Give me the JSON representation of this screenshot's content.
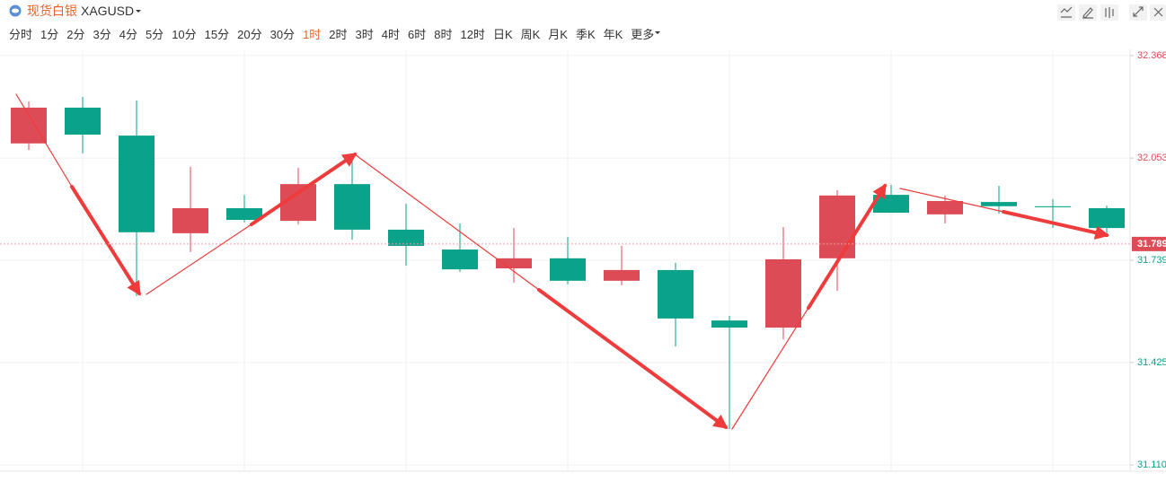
{
  "header": {
    "title": "现货白银",
    "symbol": "XAGUSD",
    "periods": [
      "分时",
      "1分",
      "2分",
      "3分",
      "4分",
      "5分",
      "10分",
      "15分",
      "20分",
      "30分",
      "1时",
      "2时",
      "3时",
      "4时",
      "6时",
      "8时",
      "12时",
      "日K",
      "周K",
      "月K",
      "季K",
      "年K",
      "更多"
    ],
    "active_period": 10
  },
  "chart_data": {
    "type": "candlestick",
    "up_color": "#dd4b57",
    "down_color": "#0aa38a",
    "open": [
      32.098,
      32.208,
      32.122,
      31.822,
      31.899,
      31.86,
      31.973,
      31.833,
      31.772,
      31.714,
      31.745,
      31.676,
      31.709,
      31.554,
      31.532,
      31.745,
      31.94,
      31.88,
      31.918,
      31.905,
      31.899
    ],
    "high": [
      32.227,
      32.241,
      32.23,
      32.026,
      31.94,
      32.023,
      32.062,
      31.913,
      31.852,
      31.838,
      31.811,
      31.783,
      31.731,
      31.568,
      31.841,
      31.954,
      31.971,
      31.938,
      31.968,
      31.927,
      31.907
    ],
    "low": [
      32.078,
      32.067,
      31.629,
      31.764,
      31.855,
      31.849,
      31.802,
      31.722,
      31.703,
      31.67,
      31.665,
      31.662,
      31.474,
      31.22,
      31.496,
      31.645,
      31.885,
      31.852,
      31.882,
      31.838,
      31.811
    ],
    "close": [
      32.208,
      32.125,
      31.825,
      31.899,
      31.863,
      31.973,
      31.833,
      31.783,
      31.711,
      31.745,
      31.676,
      31.709,
      31.56,
      31.532,
      31.742,
      31.938,
      31.885,
      31.921,
      31.905,
      31.902,
      31.838
    ],
    "ylim": [
      31.091,
      32.387
    ],
    "yticks": [
      {
        "value": 32.368,
        "label": "32.368"
      },
      {
        "value": 32.053,
        "label": "32.053"
      },
      {
        "value": 31.739,
        "label": "31.739"
      },
      {
        "value": 31.425,
        "label": "31.425"
      },
      {
        "value": 31.11,
        "label": "31.110"
      }
    ],
    "current_price": 31.789,
    "grid": true
  }
}
